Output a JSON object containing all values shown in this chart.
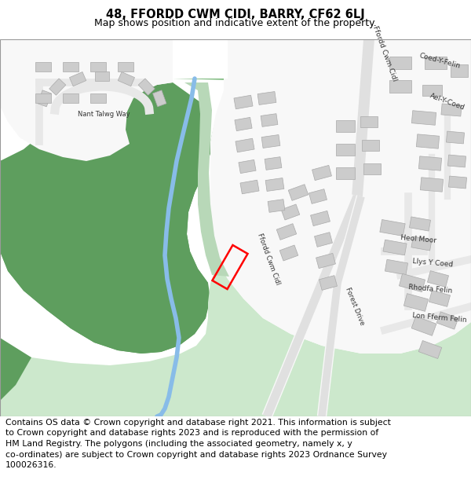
{
  "title_line1": "48, FFORDD CWM CIDI, BARRY, CF62 6LJ",
  "title_line2": "Map shows position and indicative extent of the property.",
  "title_fontsize": 10.5,
  "subtitle_fontsize": 9,
  "copyright_text_lines": [
    "Contains OS data © Crown copyright and database right 2021. This information is subject",
    "to Crown copyright and database rights 2023 and is reproduced with the permission of",
    "HM Land Registry. The polygons (including the associated geometry, namely x, y",
    "co-ordinates) are subject to Crown copyright and database rights 2023 Ordnance Survey",
    "100026316."
  ],
  "copyright_fontsize": 7.8,
  "dark_green": "#5e9e5e",
  "mid_green": "#7ab87a",
  "light_green": "#b8d8b8",
  "pale_green": "#cce8cc",
  "road_white": "#f8f8f8",
  "estate_bg": "#f0f0f0",
  "building_fill": "#cccccc",
  "building_edge": "#aaaaaa",
  "water_color": "#88bce8",
  "plot_color": "#ff0000",
  "plot_linewidth": 1.8,
  "white_bg": "#ffffff",
  "text_dark": "#333333",
  "text_road": "#555555"
}
